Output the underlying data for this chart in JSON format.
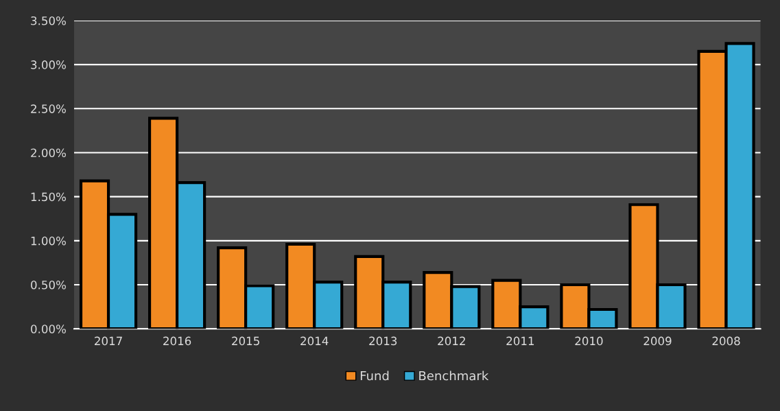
{
  "chart_data": {
    "type": "bar",
    "categories": [
      "2017",
      "2016",
      "2015",
      "2014",
      "2013",
      "2012",
      "2011",
      "2010",
      "2009",
      "2008"
    ],
    "series": [
      {
        "name": "Fund",
        "color": "#f28a22",
        "values": [
          1.68,
          2.39,
          0.92,
          0.96,
          0.82,
          0.64,
          0.55,
          0.5,
          1.41,
          3.15
        ]
      },
      {
        "name": "Benchmark",
        "color": "#35a9d4",
        "values": [
          1.3,
          1.66,
          0.49,
          0.53,
          0.53,
          0.48,
          0.25,
          0.22,
          0.5,
          3.24
        ]
      }
    ],
    "ylim": [
      0,
      3.5
    ],
    "yticks": [
      {
        "value": 0,
        "label": "0.00%"
      },
      {
        "value": 0.5,
        "label": "0.50%"
      },
      {
        "value": 1,
        "label": "1.00%"
      },
      {
        "value": 1.5,
        "label": "1.50%"
      },
      {
        "value": 2,
        "label": "2.00%"
      },
      {
        "value": 2.5,
        "label": "2.50%"
      },
      {
        "value": 3,
        "label": "3.00%"
      },
      {
        "value": 3.5,
        "label": "3.50%"
      }
    ],
    "grid": "y",
    "legend": "bottom"
  }
}
